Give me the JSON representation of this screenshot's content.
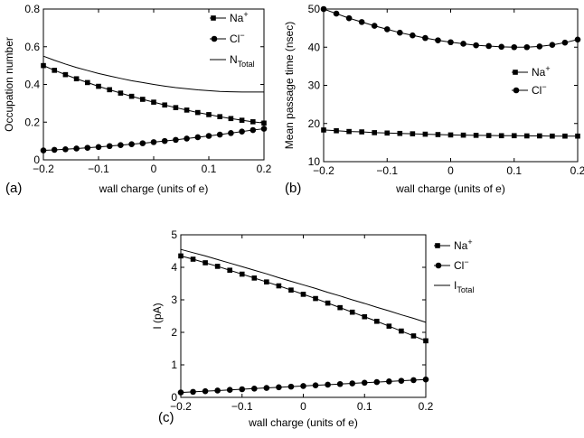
{
  "chart_data": [
    {
      "panel_label": "(a)",
      "type": "line",
      "xlabel": "wall charge (units of e)",
      "ylabel": "Occupation number",
      "xlim": [
        -0.2,
        0.2
      ],
      "ylim": [
        0,
        0.8
      ],
      "xticks": [
        "−0.2",
        "−0.1",
        "0",
        "0.1",
        "0.2"
      ],
      "yticks": [
        "0",
        "0.2",
        "0.4",
        "0.6",
        "0.8"
      ],
      "legend_position": "top-right",
      "grid": false,
      "series": [
        {
          "name": "Na",
          "sup": "+",
          "sub": "",
          "marker": "square",
          "x": [
            -0.2,
            -0.18,
            -0.16,
            -0.14,
            -0.12,
            -0.1,
            -0.08,
            -0.06,
            -0.04,
            -0.02,
            0,
            0.02,
            0.04,
            0.06,
            0.08,
            0.1,
            0.12,
            0.14,
            0.16,
            0.18,
            0.2
          ],
          "y": [
            0.5,
            0.475,
            0.452,
            0.43,
            0.41,
            0.39,
            0.372,
            0.354,
            0.337,
            0.321,
            0.306,
            0.291,
            0.277,
            0.264,
            0.251,
            0.24,
            0.229,
            0.219,
            0.21,
            0.202,
            0.195
          ]
        },
        {
          "name": "Cl",
          "sup": "−",
          "sub": "",
          "marker": "circle",
          "x": [
            -0.2,
            -0.18,
            -0.16,
            -0.14,
            -0.12,
            -0.1,
            -0.08,
            -0.06,
            -0.04,
            -0.02,
            0,
            0.02,
            0.04,
            0.06,
            0.08,
            0.1,
            0.12,
            0.14,
            0.16,
            0.18,
            0.2
          ],
          "y": [
            0.05,
            0.053,
            0.056,
            0.06,
            0.064,
            0.068,
            0.073,
            0.078,
            0.083,
            0.088,
            0.094,
            0.1,
            0.106,
            0.113,
            0.12,
            0.127,
            0.134,
            0.142,
            0.15,
            0.158,
            0.165
          ]
        },
        {
          "name": "N",
          "sup": "",
          "sub": "Total",
          "marker": "none",
          "x": [
            -0.2,
            -0.18,
            -0.16,
            -0.14,
            -0.12,
            -0.1,
            -0.08,
            -0.06,
            -0.04,
            -0.02,
            0,
            0.02,
            0.04,
            0.06,
            0.08,
            0.1,
            0.12,
            0.14,
            0.16,
            0.18,
            0.2
          ],
          "y": [
            0.55,
            0.528,
            0.508,
            0.49,
            0.474,
            0.458,
            0.445,
            0.432,
            0.42,
            0.41,
            0.4,
            0.391,
            0.383,
            0.377,
            0.371,
            0.367,
            0.363,
            0.361,
            0.36,
            0.36,
            0.36
          ]
        }
      ]
    },
    {
      "panel_label": "(b)",
      "type": "line",
      "xlabel": "wall charge (units of e)",
      "ylabel": "Mean passage time (nsec)",
      "xlim": [
        -0.2,
        0.2
      ],
      "ylim": [
        10,
        50
      ],
      "xticks": [
        "−0.2",
        "−0.1",
        "0",
        "0.1",
        "0.2"
      ],
      "yticks": [
        "10",
        "20",
        "30",
        "40",
        "50"
      ],
      "legend_position": "right",
      "grid": false,
      "series": [
        {
          "name": "Na",
          "sup": "+",
          "sub": "",
          "marker": "square",
          "x": [
            -0.2,
            -0.18,
            -0.16,
            -0.14,
            -0.12,
            -0.1,
            -0.08,
            -0.06,
            -0.04,
            -0.02,
            0,
            0.02,
            0.04,
            0.06,
            0.08,
            0.1,
            0.12,
            0.14,
            0.16,
            0.18,
            0.2
          ],
          "y": [
            18.3,
            18.1,
            17.9,
            17.8,
            17.6,
            17.5,
            17.4,
            17.3,
            17.2,
            17.1,
            17.0,
            16.95,
            16.9,
            16.85,
            16.8,
            16.8,
            16.75,
            16.75,
            16.7,
            16.7,
            16.7
          ]
        },
        {
          "name": "Cl",
          "sup": "−",
          "sub": "",
          "marker": "circle",
          "x": [
            -0.2,
            -0.18,
            -0.16,
            -0.14,
            -0.12,
            -0.1,
            -0.08,
            -0.06,
            -0.04,
            -0.02,
            0,
            0.02,
            0.04,
            0.06,
            0.08,
            0.1,
            0.12,
            0.14,
            0.16,
            0.18,
            0.2
          ],
          "y": [
            50.0,
            48.8,
            47.6,
            46.6,
            45.6,
            44.7,
            43.8,
            43.1,
            42.4,
            41.8,
            41.3,
            40.9,
            40.5,
            40.3,
            40.1,
            40.0,
            40.0,
            40.2,
            40.6,
            41.2,
            42.0
          ]
        }
      ]
    },
    {
      "panel_label": "(c)",
      "type": "line",
      "xlabel": "wall charge (units of e)",
      "ylabel": "I (pA)",
      "xlim": [
        -0.2,
        0.2
      ],
      "ylim": [
        0,
        5
      ],
      "xticks": [
        "−0.2",
        "−0.1",
        "0",
        "0.1",
        "0.2"
      ],
      "yticks": [
        "0",
        "1",
        "2",
        "3",
        "4",
        "5"
      ],
      "legend_position": "top-right",
      "grid": false,
      "series": [
        {
          "name": "Na",
          "sup": "+",
          "sub": "",
          "marker": "square",
          "x": [
            -0.2,
            -0.18,
            -0.16,
            -0.14,
            -0.12,
            -0.1,
            -0.08,
            -0.06,
            -0.04,
            -0.02,
            0,
            0.02,
            0.04,
            0.06,
            0.08,
            0.1,
            0.12,
            0.14,
            0.16,
            0.18,
            0.2
          ],
          "y": [
            4.35,
            4.25,
            4.14,
            4.03,
            3.91,
            3.79,
            3.67,
            3.55,
            3.43,
            3.3,
            3.17,
            3.04,
            2.9,
            2.76,
            2.62,
            2.48,
            2.34,
            2.19,
            2.04,
            1.89,
            1.74
          ]
        },
        {
          "name": "Cl",
          "sup": "−",
          "sub": "",
          "marker": "circle",
          "x": [
            -0.2,
            -0.18,
            -0.16,
            -0.14,
            -0.12,
            -0.1,
            -0.08,
            -0.06,
            -0.04,
            -0.02,
            0,
            0.02,
            0.04,
            0.06,
            0.08,
            0.1,
            0.12,
            0.14,
            0.16,
            0.18,
            0.2
          ],
          "y": [
            0.15,
            0.17,
            0.19,
            0.21,
            0.23,
            0.25,
            0.27,
            0.29,
            0.31,
            0.33,
            0.35,
            0.37,
            0.39,
            0.41,
            0.43,
            0.45,
            0.47,
            0.49,
            0.51,
            0.53,
            0.55
          ]
        },
        {
          "name": "I",
          "sup": "",
          "sub": "Total",
          "marker": "none",
          "x": [
            -0.2,
            -0.18,
            -0.16,
            -0.14,
            -0.12,
            -0.1,
            -0.08,
            -0.06,
            -0.04,
            -0.02,
            0,
            0.02,
            0.04,
            0.06,
            0.08,
            0.1,
            0.12,
            0.14,
            0.16,
            0.18,
            0.2
          ],
          "y": [
            4.55,
            4.45,
            4.35,
            4.24,
            4.13,
            4.02,
            3.91,
            3.8,
            3.68,
            3.57,
            3.46,
            3.35,
            3.23,
            3.12,
            3.0,
            2.89,
            2.77,
            2.66,
            2.54,
            2.43,
            2.31
          ]
        }
      ]
    }
  ]
}
